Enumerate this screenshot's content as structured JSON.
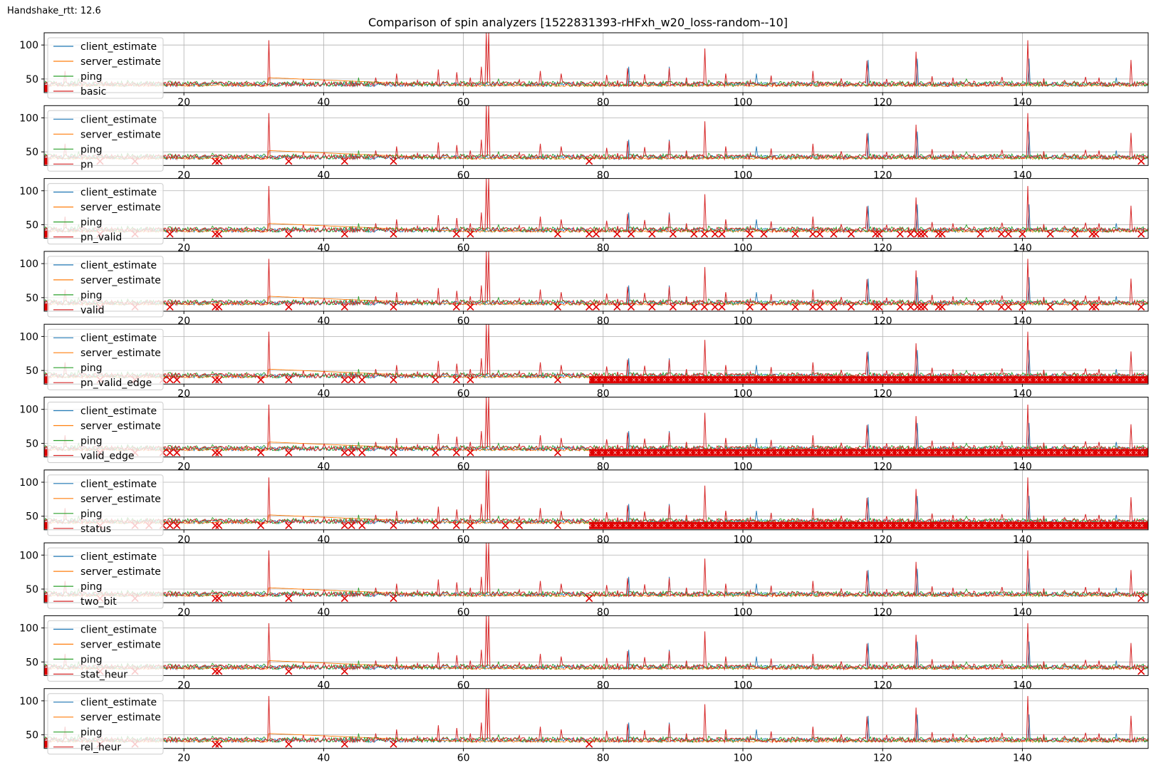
{
  "annotation": "Handshake_rtt: 12.6",
  "title": "Comparison of spin analyzers [1522831393-rHFxh_w20_loss-random--10]",
  "colors": {
    "client_estimate": "#1f77b4",
    "server_estimate": "#ff7f0e",
    "ping": "#2ca02c",
    "analyzer": "#d62728",
    "marker": "#e00000",
    "grid": "#b0b0b0"
  },
  "chart_data": {
    "type": "line",
    "xlim": [
      0,
      158
    ],
    "ylim": [
      30,
      118
    ],
    "x_ticks": [
      20,
      40,
      60,
      80,
      100,
      120,
      140
    ],
    "y_ticks": [
      50,
      100
    ],
    "grid": true,
    "legend_placement": "upper-left",
    "series_common": [
      "client_estimate",
      "server_estimate",
      "ping"
    ],
    "baseline_rtt": 40,
    "spikes": {
      "analyzer": [
        [
          3,
          62
        ],
        [
          32.2,
          107
        ],
        [
          34.5,
          45
        ],
        [
          37,
          50
        ],
        [
          40,
          49
        ],
        [
          44,
          46
        ],
        [
          47.5,
          52
        ],
        [
          50.5,
          58
        ],
        [
          53.5,
          48
        ],
        [
          56.5,
          64
        ],
        [
          59,
          60
        ],
        [
          61,
          52
        ],
        [
          62.5,
          68
        ],
        [
          63.2,
          118
        ],
        [
          63.6,
          118
        ],
        [
          68,
          49
        ],
        [
          71,
          62
        ],
        [
          74,
          58
        ],
        [
          77,
          45
        ],
        [
          80.5,
          56
        ],
        [
          82,
          48
        ],
        [
          83.5,
          66
        ],
        [
          86,
          57
        ],
        [
          89.5,
          66
        ],
        [
          92,
          52
        ],
        [
          94.5,
          95
        ],
        [
          97.5,
          58
        ],
        [
          101,
          48
        ],
        [
          104,
          55
        ],
        [
          107,
          46
        ],
        [
          110,
          62
        ],
        [
          114,
          51
        ],
        [
          117.8,
          77
        ],
        [
          120.5,
          50
        ],
        [
          124.8,
          90
        ],
        [
          127,
          54
        ],
        [
          130,
          52
        ],
        [
          133,
          47
        ],
        [
          137,
          53
        ],
        [
          140.8,
          107
        ],
        [
          143,
          51
        ],
        [
          146,
          48
        ],
        [
          149,
          53
        ],
        [
          151,
          52
        ],
        [
          155.5,
          78
        ]
      ],
      "client_estimate": [
        [
          83.6,
          68
        ],
        [
          89.4,
          68
        ],
        [
          102,
          58
        ],
        [
          118,
          78
        ],
        [
          125,
          80
        ],
        [
          141,
          80
        ],
        [
          153.5,
          52
        ]
      ],
      "ping": [
        [
          5,
          50
        ],
        [
          12,
          48
        ],
        [
          24,
          48
        ],
        [
          45,
          52
        ],
        [
          65,
          50
        ],
        [
          95,
          48
        ],
        [
          132,
          50
        ]
      ]
    },
    "subplots": [
      {
        "analyzer": "basic",
        "markers": [],
        "dense_from": null
      },
      {
        "analyzer": "pn",
        "markers": [
          8,
          13,
          24.5,
          25,
          35,
          43,
          50,
          78,
          157
        ],
        "dense_from": null
      },
      {
        "analyzer": "pn_valid",
        "markers": [
          8,
          13,
          18,
          24.5,
          25,
          35,
          43,
          50,
          59,
          61,
          73.5,
          78,
          79,
          82,
          84,
          87,
          90,
          93,
          94.5,
          96,
          97,
          101,
          103,
          107.5,
          110,
          111,
          113,
          115.5,
          119,
          119.5,
          122.5,
          124,
          125,
          125.5,
          126,
          128,
          128.5,
          134,
          137,
          138,
          140,
          144,
          147.5,
          150,
          150.5,
          157
        ],
        "dense_from": null
      },
      {
        "analyzer": "valid",
        "markers": [
          8,
          13,
          18,
          24.5,
          25,
          35,
          43,
          50,
          59,
          61,
          73.5,
          78,
          79,
          82,
          84,
          87,
          90,
          93,
          94.5,
          96,
          97,
          101,
          103,
          107.5,
          110,
          111,
          113,
          115.5,
          119,
          119.5,
          122.5,
          124,
          125,
          125.5,
          126,
          128,
          128.5,
          134,
          137,
          138,
          140,
          144,
          147.5,
          150,
          150.5,
          157
        ],
        "dense_from": null
      },
      {
        "analyzer": "pn_valid_edge",
        "markers": [
          8,
          13,
          17,
          18,
          19,
          24.5,
          25,
          31,
          35,
          43,
          44,
          45.5,
          50,
          56,
          59,
          61,
          73.5
        ],
        "dense_from": 78
      },
      {
        "analyzer": "valid_edge",
        "markers": [
          8,
          13,
          17,
          18,
          19,
          24.5,
          25,
          31,
          35,
          43,
          44,
          45.5,
          50,
          56,
          59,
          61,
          73.5
        ],
        "dense_from": 78
      },
      {
        "analyzer": "status",
        "markers": [
          8,
          13,
          15,
          17,
          18,
          19,
          24.5,
          25,
          31,
          35,
          43,
          44,
          45.5,
          50,
          56,
          59,
          61,
          66,
          68,
          73.5
        ],
        "dense_from": 78
      },
      {
        "analyzer": "two_bit",
        "markers": [
          8,
          13,
          24.5,
          25,
          35,
          43,
          50,
          78,
          157
        ],
        "dense_from": null
      },
      {
        "analyzer": "stat_heur",
        "markers": [
          8,
          13,
          24.5,
          25,
          35,
          43,
          157
        ],
        "dense_from": null
      },
      {
        "analyzer": "rel_heur",
        "markers": [
          8,
          13,
          24.5,
          25,
          35,
          43,
          50,
          78
        ],
        "dense_from": null
      }
    ]
  }
}
